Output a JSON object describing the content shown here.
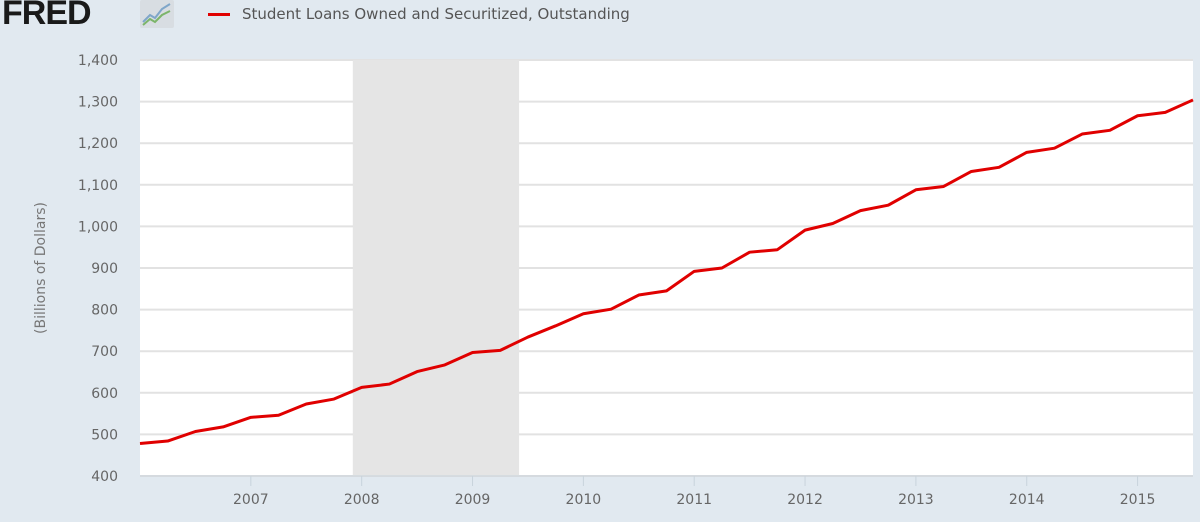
{
  "header": {
    "logo_text": "FRED",
    "logo_icon": "line-chart-icon"
  },
  "legend": {
    "label": "Student Loans Owned and Securitized, Outstanding",
    "color": "#e00000"
  },
  "chart_data": {
    "type": "line",
    "title": "",
    "xlabel": "",
    "ylabel": "(Billions of Dollars)",
    "ylim": [
      400,
      1400
    ],
    "xlim": [
      2006.0,
      2015.5
    ],
    "yticks": [
      400,
      500,
      600,
      700,
      800,
      900,
      1000,
      1100,
      1200,
      1300,
      1400
    ],
    "ytick_labels": [
      "400",
      "500",
      "600",
      "700",
      "800",
      "900",
      "1,000",
      "1,100",
      "1,200",
      "1,300",
      "1,400"
    ],
    "xticks": [
      2007,
      2008,
      2009,
      2010,
      2011,
      2012,
      2013,
      2014,
      2015
    ],
    "xtick_labels": [
      "2007",
      "2008",
      "2009",
      "2010",
      "2011",
      "2012",
      "2013",
      "2014",
      "2015"
    ],
    "grid": true,
    "legend_position": "top",
    "recession_shading": [
      {
        "start": 2007.92,
        "end": 2009.42,
        "color": "#e5e5e5"
      }
    ],
    "series": [
      {
        "name": "Student Loans Owned and Securitized, Outstanding",
        "color": "#e00000",
        "x": [
          "2006-Q1",
          "2006-Q2",
          "2006-Q3",
          "2006-Q4",
          "2007-Q1",
          "2007-Q2",
          "2007-Q3",
          "2007-Q4",
          "2008-Q1",
          "2008-Q2",
          "2008-Q3",
          "2008-Q4",
          "2009-Q1",
          "2009-Q2",
          "2009-Q3",
          "2009-Q4",
          "2010-Q1",
          "2010-Q2",
          "2010-Q3",
          "2010-Q4",
          "2011-Q1",
          "2011-Q2",
          "2011-Q3",
          "2011-Q4",
          "2012-Q1",
          "2012-Q2",
          "2012-Q3",
          "2012-Q4",
          "2013-Q1",
          "2013-Q2",
          "2013-Q3",
          "2013-Q4",
          "2014-Q1",
          "2014-Q2",
          "2014-Q3",
          "2014-Q4",
          "2015-Q1",
          "2015-Q2",
          "2015-Q3"
        ],
        "values": [
          478,
          484,
          507,
          518,
          541,
          546,
          573,
          585,
          613,
          621,
          651,
          667,
          697,
          702,
          734,
          761,
          790,
          801,
          835,
          845,
          892,
          900,
          938,
          944,
          991,
          1007,
          1038,
          1051,
          1088,
          1096,
          1132,
          1142,
          1178,
          1188,
          1222,
          1231,
          1266,
          1274,
          1304
        ]
      }
    ]
  }
}
